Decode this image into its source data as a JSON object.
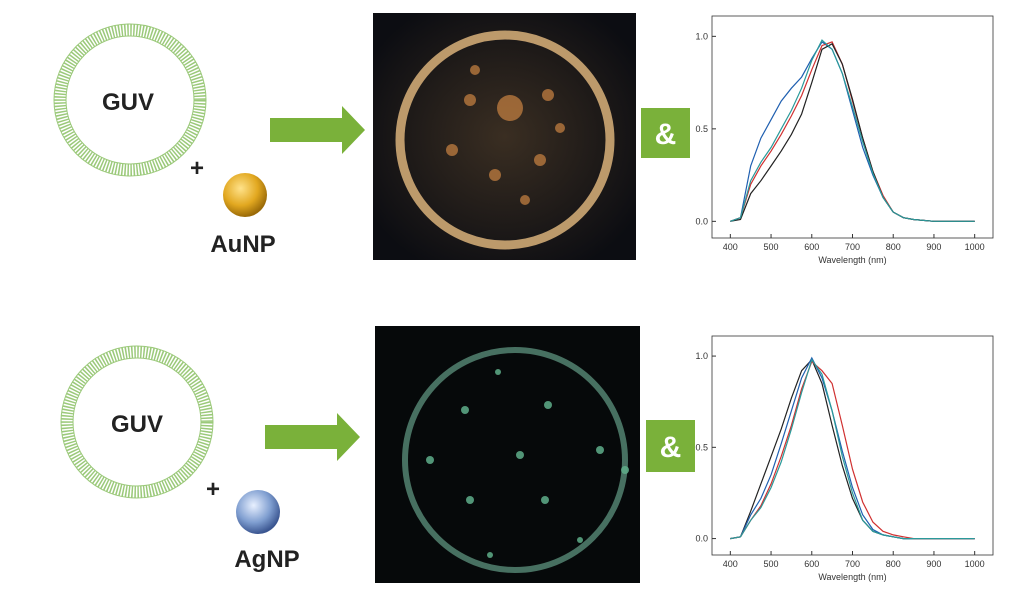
{
  "panels": [
    {
      "vesicle_label": "GUV",
      "plus": "+",
      "particle_label": "AuNP",
      "connector": "&"
    },
    {
      "vesicle_label": "GUV",
      "plus": "+",
      "particle_label": "AgNP",
      "connector": "&"
    }
  ],
  "chart_data": [
    {
      "type": "line",
      "x_label": "Wavelength (nm)",
      "x": [
        400,
        425,
        450,
        475,
        500,
        525,
        550,
        575,
        600,
        625,
        650,
        675,
        700,
        725,
        750,
        775,
        800,
        825,
        850,
        900,
        950,
        1000
      ],
      "xlim": [
        355,
        1045
      ],
      "xticks": [
        400,
        500,
        600,
        700,
        800,
        900,
        1000
      ],
      "ylim": [
        -0.09,
        1.11
      ],
      "yticks": [
        {
          "value": 0,
          "label": "0.0"
        },
        {
          "value": 0.5,
          "label": "0.5"
        },
        {
          "value": 1,
          "label": "1.0"
        }
      ],
      "series": [
        {
          "color": "#1f5fb0",
          "values": [
            0,
            0.02,
            0.3,
            0.45,
            0.55,
            0.65,
            0.72,
            0.78,
            0.88,
            0.97,
            0.93,
            0.8,
            0.6,
            0.4,
            0.25,
            0.13,
            0.05,
            0.02,
            0.01,
            0,
            0,
            0
          ]
        },
        {
          "color": "#d03030",
          "values": [
            0,
            0.02,
            0.2,
            0.3,
            0.38,
            0.47,
            0.57,
            0.68,
            0.82,
            0.95,
            0.97,
            0.85,
            0.65,
            0.45,
            0.27,
            0.14,
            0.05,
            0.02,
            0.01,
            0,
            0,
            0
          ]
        },
        {
          "color": "#222222",
          "values": [
            0,
            0.01,
            0.15,
            0.22,
            0.3,
            0.38,
            0.47,
            0.58,
            0.75,
            0.93,
            0.96,
            0.85,
            0.66,
            0.45,
            0.27,
            0.13,
            0.05,
            0.02,
            0.01,
            0,
            0,
            0
          ]
        },
        {
          "color": "#2a9a9a",
          "values": [
            0,
            0.02,
            0.22,
            0.32,
            0.4,
            0.5,
            0.6,
            0.72,
            0.87,
            0.98,
            0.93,
            0.8,
            0.62,
            0.43,
            0.26,
            0.13,
            0.05,
            0.02,
            0.01,
            0,
            0,
            0
          ]
        }
      ]
    },
    {
      "type": "line",
      "x_label": "Wavelength (nm)",
      "x": [
        400,
        425,
        450,
        475,
        500,
        525,
        550,
        575,
        600,
        625,
        650,
        675,
        700,
        725,
        750,
        775,
        800,
        825,
        850,
        900,
        950,
        1000
      ],
      "xlim": [
        355,
        1045
      ],
      "xticks": [
        400,
        500,
        600,
        700,
        800,
        900,
        1000
      ],
      "ylim": [
        -0.09,
        1.11
      ],
      "yticks": [
        {
          "value": 0,
          "label": "0.0"
        },
        {
          "value": 0.5,
          "label": "0.5"
        },
        {
          "value": 1,
          "label": "1.0"
        }
      ],
      "series": [
        {
          "color": "#222222",
          "values": [
            0,
            0.01,
            0.15,
            0.3,
            0.45,
            0.6,
            0.77,
            0.92,
            0.98,
            0.85,
            0.62,
            0.4,
            0.22,
            0.1,
            0.04,
            0.02,
            0.01,
            0,
            0,
            0,
            0,
            0
          ]
        },
        {
          "color": "#1f5fb0",
          "values": [
            0,
            0.01,
            0.13,
            0.22,
            0.35,
            0.52,
            0.7,
            0.88,
            0.99,
            0.88,
            0.7,
            0.48,
            0.28,
            0.13,
            0.05,
            0.02,
            0.01,
            0,
            0,
            0,
            0,
            0
          ]
        },
        {
          "color": "#d03030",
          "values": [
            0,
            0.01,
            0.1,
            0.18,
            0.3,
            0.45,
            0.62,
            0.82,
            0.97,
            0.92,
            0.85,
            0.62,
            0.38,
            0.2,
            0.09,
            0.04,
            0.02,
            0.01,
            0,
            0,
            0,
            0
          ]
        },
        {
          "color": "#2a9a9a",
          "values": [
            0,
            0.01,
            0.1,
            0.17,
            0.28,
            0.42,
            0.6,
            0.8,
            0.98,
            0.9,
            0.7,
            0.45,
            0.25,
            0.1,
            0.04,
            0.02,
            0.01,
            0,
            0,
            0,
            0,
            0
          ]
        }
      ]
    }
  ]
}
